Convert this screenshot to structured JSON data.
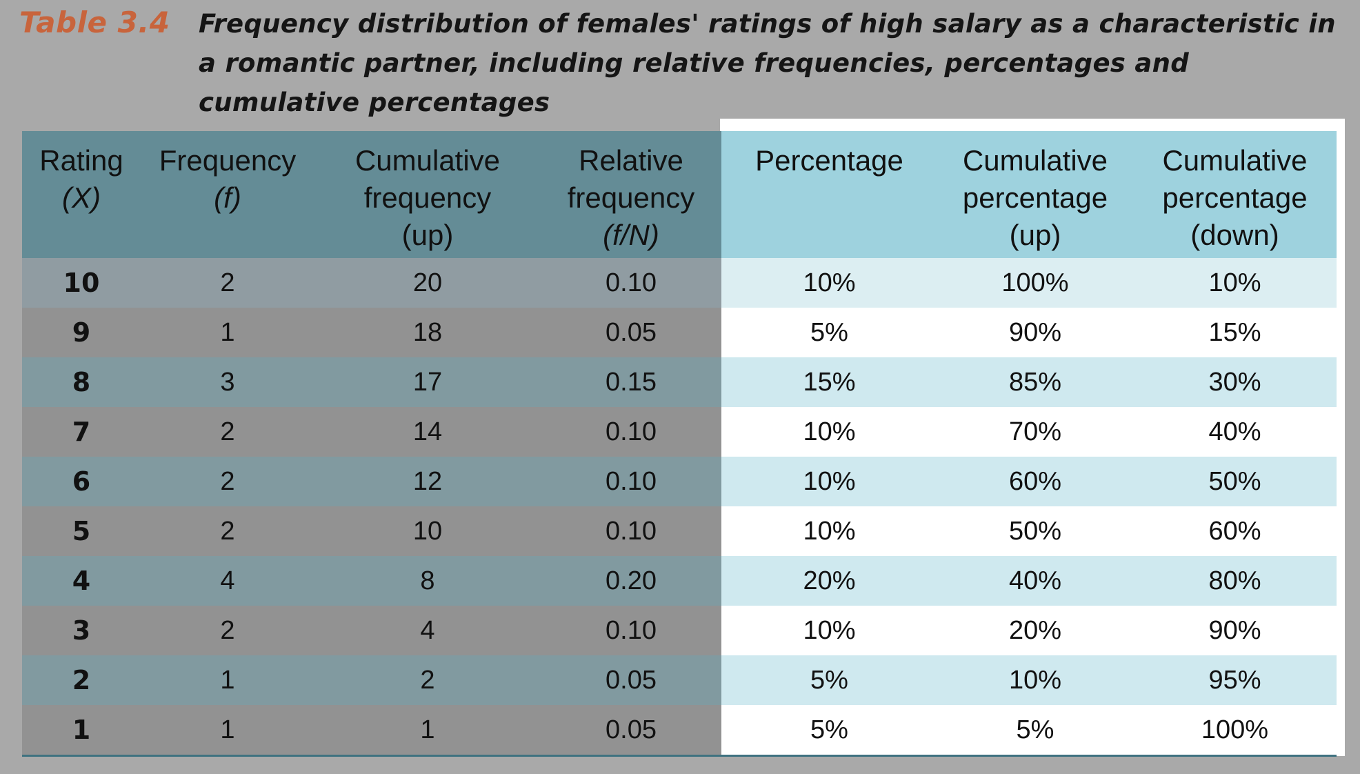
{
  "caption": {
    "label": "Table 3.4",
    "title": "Frequency distribution of females' ratings of high salary as a characteristic in a romantic partner, including relative frequencies, percentages and cumulative percentages"
  },
  "table": {
    "headers": [
      [
        "Rating",
        "(X)",
        ""
      ],
      [
        "Frequency",
        "(f)",
        ""
      ],
      [
        "Cumulative",
        "frequency",
        "(up)"
      ],
      [
        "Relative",
        "frequency",
        "(f/N)"
      ],
      [
        "Percentage",
        "",
        ""
      ],
      [
        "Cumulative",
        "percentage",
        "(up)"
      ],
      [
        "Cumulative",
        "percentage",
        "(down)"
      ]
    ],
    "rows": [
      [
        "10",
        "2",
        "20",
        "0.10",
        "10%",
        "100%",
        "10%"
      ],
      [
        "9",
        "1",
        "18",
        "0.05",
        "5%",
        "90%",
        "15%"
      ],
      [
        "8",
        "3",
        "17",
        "0.15",
        "15%",
        "85%",
        "30%"
      ],
      [
        "7",
        "2",
        "14",
        "0.10",
        "10%",
        "70%",
        "40%"
      ],
      [
        "6",
        "2",
        "12",
        "0.10",
        "10%",
        "60%",
        "50%"
      ],
      [
        "5",
        "2",
        "10",
        "0.10",
        "10%",
        "50%",
        "60%"
      ],
      [
        "4",
        "4",
        "8",
        "0.20",
        "20%",
        "40%",
        "80%"
      ],
      [
        "3",
        "2",
        "4",
        "0.10",
        "10%",
        "20%",
        "90%"
      ],
      [
        "2",
        "1",
        "2",
        "0.05",
        "5%",
        "10%",
        "95%"
      ],
      [
        "1",
        "1",
        "1",
        "0.05",
        "5%",
        "5%",
        "100%"
      ]
    ]
  },
  "colors": {
    "label": "#c8643c",
    "header_left": "#648c96",
    "header_right": "#9ed2de",
    "rule": "#3f7280"
  }
}
